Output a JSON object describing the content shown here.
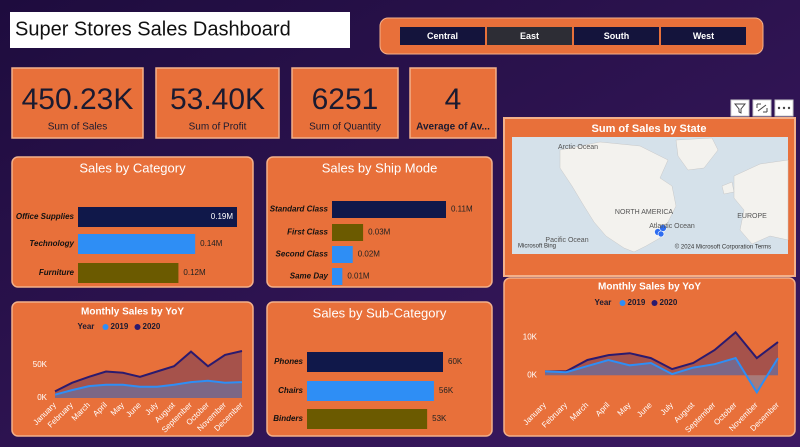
{
  "header": {
    "title": "Super Stores Sales Dashboard"
  },
  "slicer": {
    "options": [
      "Central",
      "East",
      "South",
      "West"
    ],
    "selected": "East"
  },
  "cards": [
    {
      "value": "450.23K",
      "label": "Sum of Sales"
    },
    {
      "value": "53.40K",
      "label": "Sum of Profit"
    },
    {
      "value": "6251",
      "label": "Sum of Quantity"
    },
    {
      "value": "4",
      "label": "Average of Av..."
    }
  ],
  "map": {
    "title": "Sum of Sales by State",
    "labels": [
      "Arctic Ocean",
      "NORTH AMERICA",
      "Pacific Ocean",
      "Atlantic Ocean",
      "EUROPE",
      "Microsoft Bing",
      "© 2024 Microsoft Corporation",
      "Terms"
    ]
  },
  "chart_data": [
    {
      "type": "hbar",
      "title": "Sales by Category",
      "categories": [
        "Office Supplies",
        "Technology",
        "Furniture"
      ],
      "values": [
        0.19,
        0.14,
        0.12
      ],
      "value_labels": [
        "0.19M",
        "0.14M",
        "0.12M"
      ],
      "colors": [
        "#10184a",
        "#2e8ef5",
        "#6b5a00"
      ]
    },
    {
      "type": "hbar",
      "title": "Sales by Ship Mode",
      "categories": [
        "Standard Class",
        "First Class",
        "Second Class",
        "Same Day"
      ],
      "values": [
        0.11,
        0.03,
        0.02,
        0.01
      ],
      "value_labels": [
        "0.11M",
        "0.03M",
        "0.02M",
        "0.01M"
      ],
      "colors": [
        "#10184a",
        "#6b5a00",
        "#2e8ef5",
        "#2e8ef5"
      ]
    },
    {
      "type": "hbar",
      "title": "Sales by Sub-Category",
      "categories": [
        "Phones",
        "Chairs",
        "Binders"
      ],
      "values": [
        60,
        56,
        53
      ],
      "value_labels": [
        "60K",
        "56K",
        "53K"
      ],
      "colors": [
        "#10184a",
        "#2e8ef5",
        "#6b5a00"
      ]
    },
    {
      "type": "area",
      "title": "Monthly Sales by YoY",
      "legend_title": "Year",
      "categories": [
        "January",
        "February",
        "March",
        "April",
        "May",
        "June",
        "July",
        "August",
        "September",
        "October",
        "November",
        "December"
      ],
      "series": [
        {
          "name": "2019",
          "color": "#2e8ef5",
          "values": [
            5000,
            12000,
            18000,
            20000,
            20000,
            17000,
            17000,
            20000,
            24000,
            26000,
            23000,
            24000
          ]
        },
        {
          "name": "2020",
          "color": "#2b1a6e",
          "values": [
            10000,
            23000,
            32000,
            40000,
            38000,
            32000,
            40000,
            48000,
            70000,
            48000,
            65000,
            71000
          ]
        }
      ],
      "ylim": [
        0,
        80000
      ],
      "yticks": [
        {
          "value": 0,
          "label": "0K"
        },
        {
          "value": 50000,
          "label": "50K"
        }
      ]
    },
    {
      "type": "area",
      "title": "Monthly Sales by YoY",
      "legend_title": "Year",
      "categories": [
        "January",
        "February",
        "March",
        "April",
        "May",
        "June",
        "July",
        "August",
        "September",
        "October",
        "November",
        "December"
      ],
      "series": [
        {
          "name": "2019",
          "color": "#2e8ef5",
          "values": [
            1000,
            800,
            2400,
            4000,
            2600,
            3200,
            300,
            2000,
            2900,
            4500,
            -4500,
            4500
          ]
        },
        {
          "name": "2020",
          "color": "#2b1a6e",
          "values": [
            1000,
            1000,
            4000,
            5300,
            5800,
            4500,
            1600,
            3200,
            6600,
            11300,
            4500,
            8700
          ]
        }
      ],
      "ylim": [
        -6000,
        14000
      ],
      "yticks": [
        {
          "value": 0,
          "label": "0K"
        },
        {
          "value": 10000,
          "label": "10K"
        }
      ]
    }
  ]
}
